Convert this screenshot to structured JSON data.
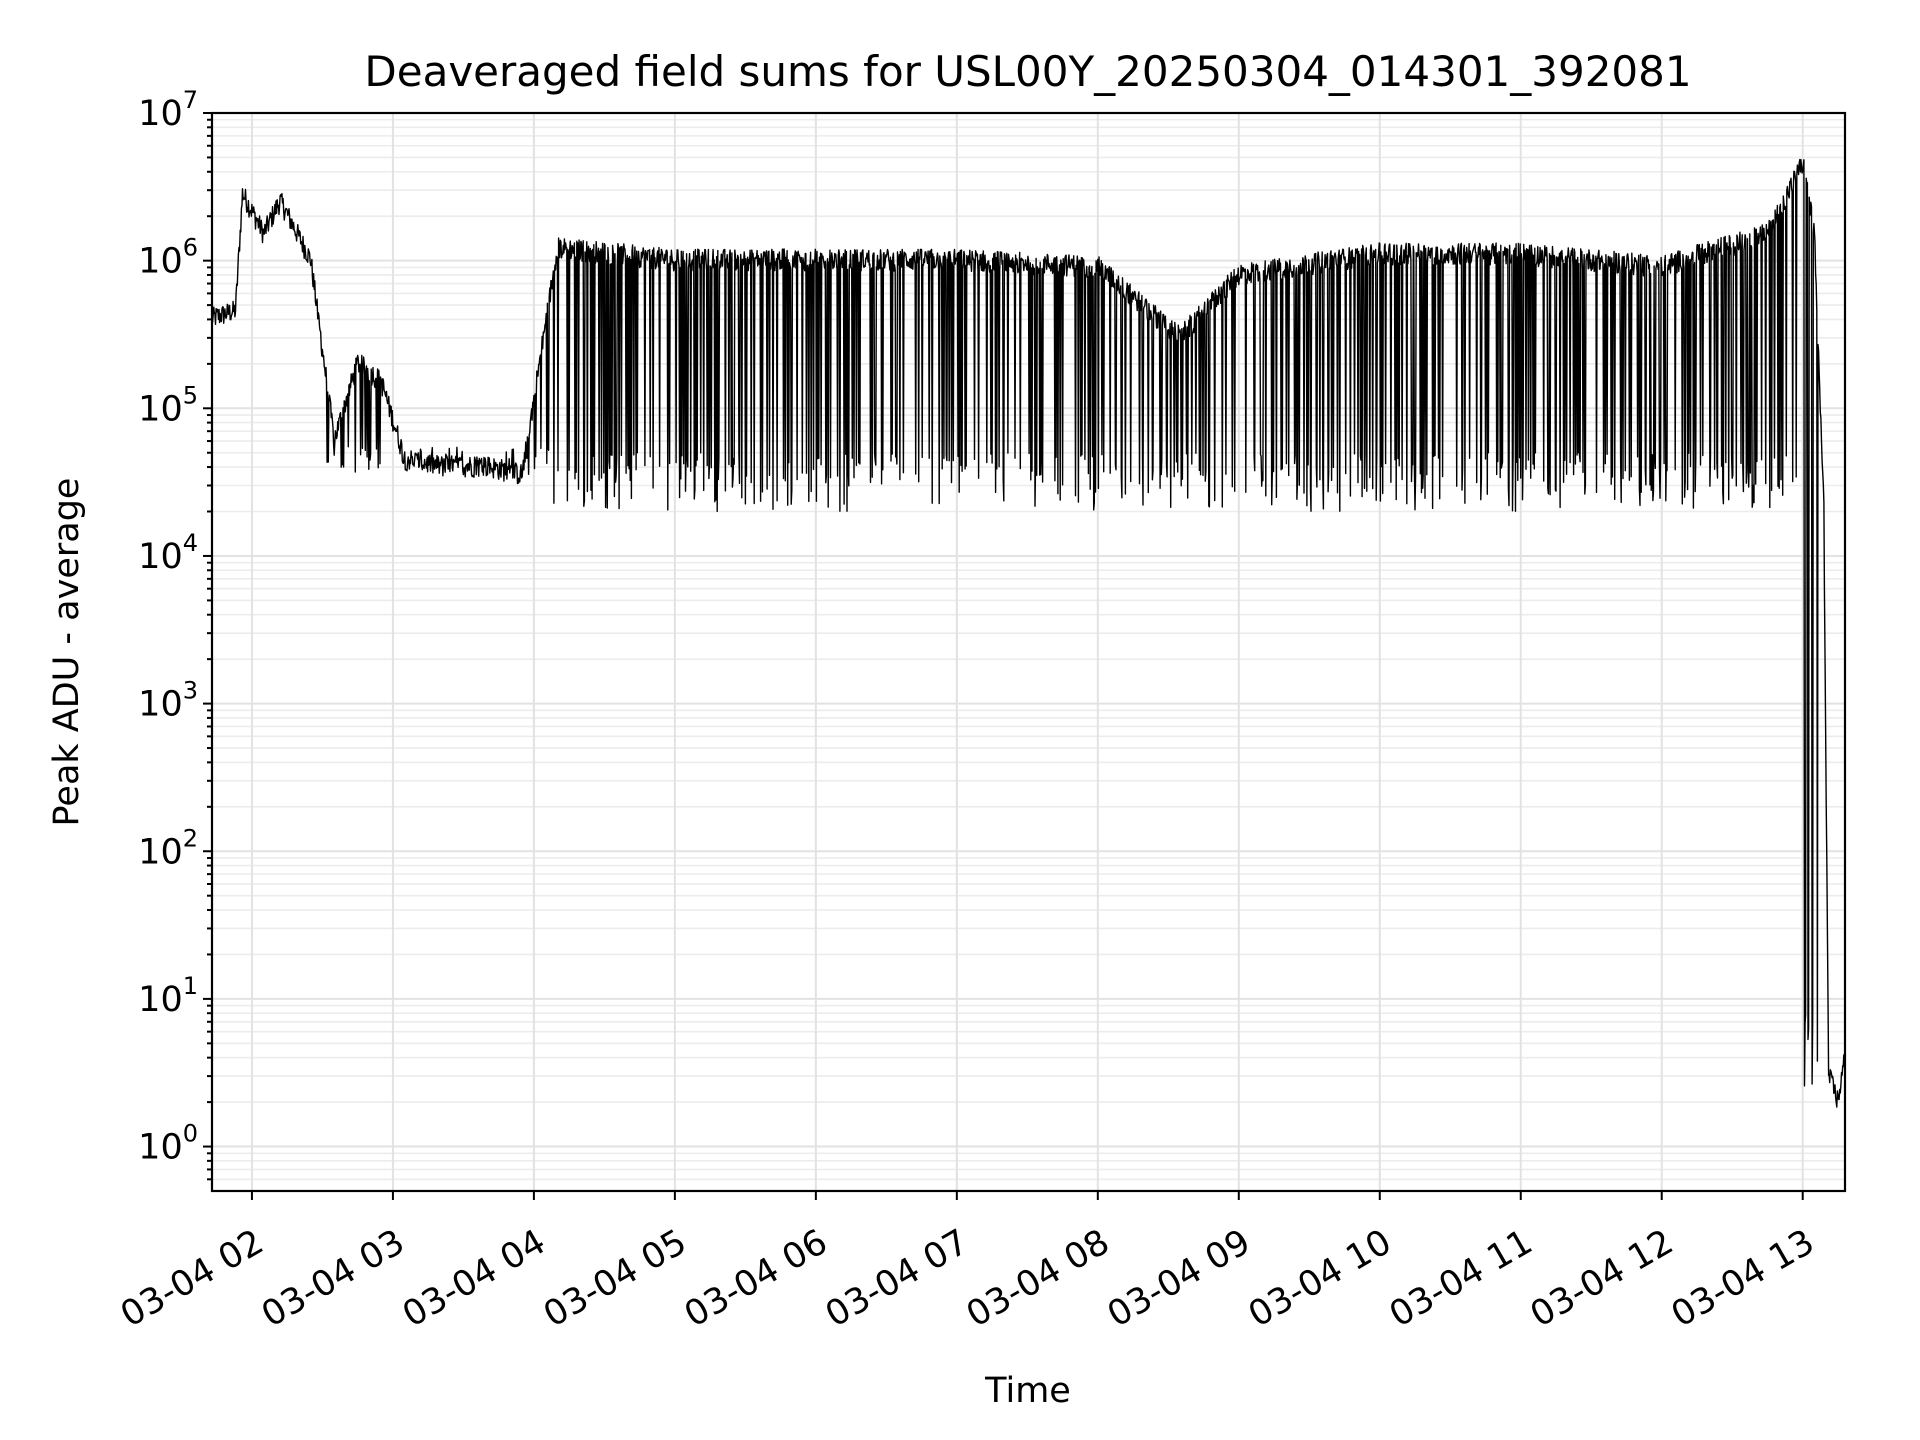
{
  "chart_data": {
    "type": "line",
    "title": "Deaveraged field sums for USL00Y_20250304_014301_392081",
    "xlabel": "Time",
    "ylabel": "Peak ADU - average",
    "yscale": "log",
    "xlim": [
      "2025-03-04 01:43",
      "2025-03-04 13:18"
    ],
    "ylim": [
      0.5,
      10000000
    ],
    "grid": true,
    "x_ticks": [
      "03-04 02",
      "03-04 03",
      "03-04 04",
      "03-04 05",
      "03-04 06",
      "03-04 07",
      "03-04 08",
      "03-04 09",
      "03-04 10",
      "03-04 11",
      "03-04 12",
      "03-04 13"
    ],
    "y_ticks": [
      {
        "base": "10",
        "exp": "0",
        "value": 1
      },
      {
        "base": "10",
        "exp": "1",
        "value": 10
      },
      {
        "base": "10",
        "exp": "2",
        "value": 100
      },
      {
        "base": "10",
        "exp": "3",
        "value": 1000
      },
      {
        "base": "10",
        "exp": "4",
        "value": 10000
      },
      {
        "base": "10",
        "exp": "5",
        "value": 100000
      },
      {
        "base": "10",
        "exp": "6",
        "value": 1000000
      },
      {
        "base": "10",
        "exp": "7",
        "value": 10000000
      }
    ],
    "series": [
      {
        "color": "#000000",
        "description_points": [
          [
            "2025-03-04 01:43",
            400000
          ],
          [
            "2025-03-04 01:53",
            450000
          ],
          [
            "2025-03-04 01:56",
            2800000
          ],
          [
            "2025-03-04 02:05",
            1500000
          ],
          [
            "2025-03-04 02:12",
            2500000
          ],
          [
            "2025-03-04 02:25",
            1000000
          ],
          [
            "2025-03-04 02:35",
            60000
          ],
          [
            "2025-03-04 02:45",
            200000
          ],
          [
            "2025-03-04 02:55",
            150000
          ],
          [
            "2025-03-04 03:05",
            45000
          ],
          [
            "2025-03-04 03:20",
            40000
          ],
          [
            "2025-03-04 03:40",
            40000
          ],
          [
            "2025-03-04 03:55",
            35000
          ],
          [
            "2025-03-04 04:10",
            1200000
          ],
          [
            "2025-03-04 05:00",
            1000000
          ],
          [
            "2025-03-04 06:00",
            1000000
          ],
          [
            "2025-03-04 07:00",
            1000000
          ],
          [
            "2025-03-04 08:00",
            900000
          ],
          [
            "2025-03-04 08:35",
            300000
          ],
          [
            "2025-03-04 09:00",
            800000
          ],
          [
            "2025-03-04 10:00",
            1100000
          ],
          [
            "2025-03-04 11:00",
            1100000
          ],
          [
            "2025-03-04 12:00",
            900000
          ],
          [
            "2025-03-04 12:45",
            1500000
          ],
          [
            "2025-03-04 13:00",
            4500000
          ],
          [
            "2025-03-04 13:05",
            1500000
          ],
          [
            "2025-03-04 13:09",
            20000
          ],
          [
            "2025-03-04 13:11",
            3
          ],
          [
            "2025-03-04 13:15",
            2
          ],
          [
            "2025-03-04 13:18",
            4
          ]
        ]
      }
    ]
  }
}
